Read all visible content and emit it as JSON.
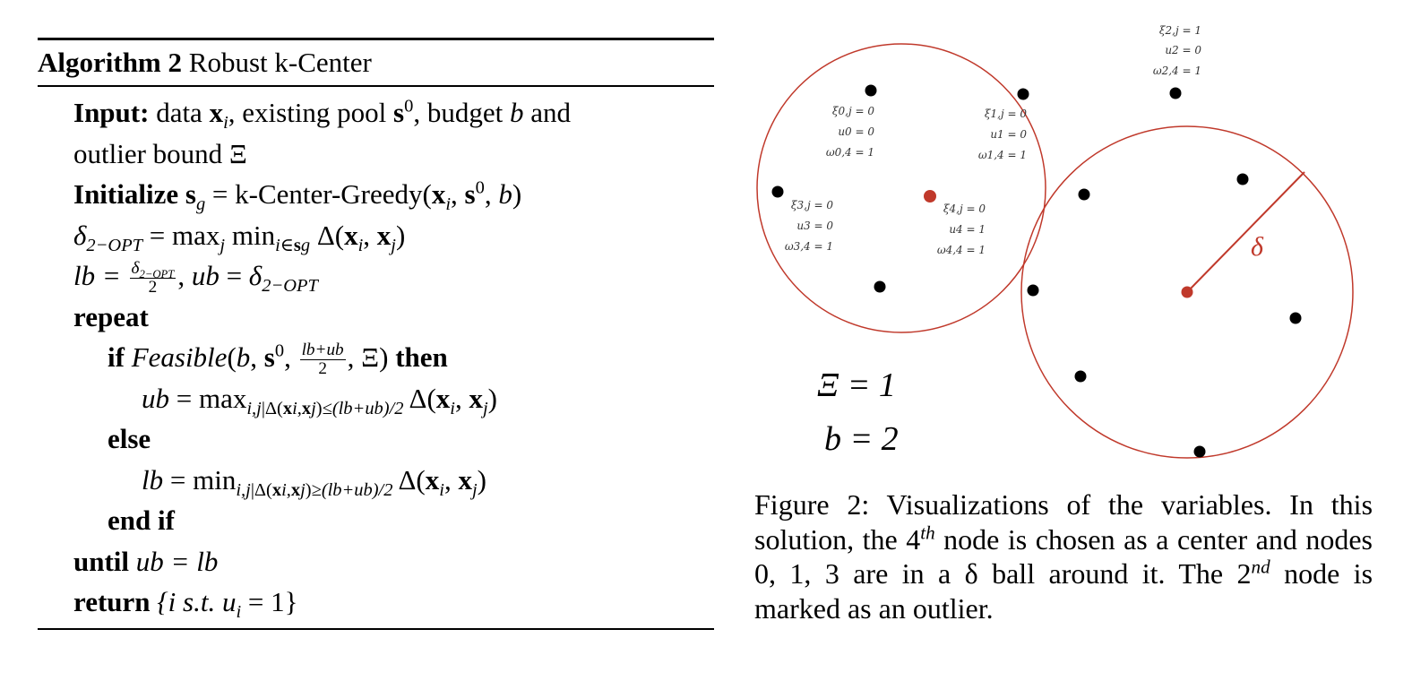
{
  "algorithm": {
    "label": "Algorithm 2",
    "name": "Robust k-Center",
    "input_kw": "Input:",
    "input_text_1": "data",
    "input_text_2": ", existing pool",
    "input_text_3": ", budget",
    "input_text_4": "and",
    "input_text_5": "outlier bound Ξ",
    "init_kw": "Initialize",
    "init_text": "= k-Center-Greedy(",
    "delta_line": "= max",
    "lb_line": "lb =",
    "repeat_kw": "repeat",
    "if_kw": "if",
    "then_kw": "then",
    "else_kw": "else",
    "endif_kw": "end if",
    "until_kw": "until",
    "until_expr": "ub = lb",
    "return_kw": "return",
    "return_expr": "{i s.t. u",
    "return_expr_end": " = 1}"
  },
  "figure": {
    "nodes": [
      {
        "lines": [
          "ξ0,j = 0",
          "u0 = 0",
          "ω0,4 = 1"
        ]
      },
      {
        "lines": [
          "ξ1,j = 0",
          "u1 = 0",
          "ω1,4 = 1"
        ]
      },
      {
        "lines": [
          "ξ2,j = 1",
          "u2 = 0",
          "ω2,4 = 1"
        ]
      },
      {
        "lines": [
          "ξ3,j = 0",
          "u3 = 0",
          "ω3,4 = 1"
        ]
      },
      {
        "lines": [
          "ξ4,j = 0",
          "u4 = 1",
          "ω4,4 = 1"
        ]
      }
    ],
    "xi_label": "Ξ = 1",
    "b_label": "b = 2",
    "delta_label": "δ",
    "colors": {
      "circle": "#c0392b",
      "center": "#c0392b",
      "point": "#000000"
    }
  },
  "caption": {
    "prefix": "Figure 2:",
    "text_1": "Visualizations of the variables. In this solution, the 4",
    "sup_1": "th",
    "text_2": "node is chosen as a center and nodes 0, 1, 3 are in a δ ball around it. The 2",
    "sup_2": "nd",
    "text_3": "node is marked as an outlier."
  }
}
